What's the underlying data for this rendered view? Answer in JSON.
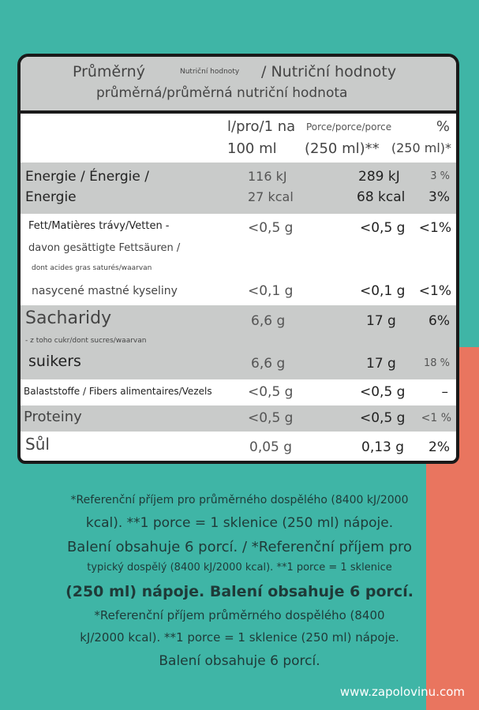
{
  "header": {
    "line1_left": "Průměrný",
    "line1_small": "Nutriční hodnoty",
    "line1_right": "/ Nutriční hodnoty",
    "line2": "průměrná/průměrná nutriční hodnota"
  },
  "columns": {
    "per100_a": "l/pro/1 na",
    "per100_b": "100 ml",
    "portion_a": "Porce/porce/porce",
    "portion_b": "(250 ml)**",
    "ri_a": "%",
    "ri_b": "(250 ml)*"
  },
  "rows": [
    {
      "label1": "Energie / Énergie /",
      "label2": "Energie",
      "per100": "116 kJ",
      "per100b": "27 kcal",
      "portion": "289 kJ",
      "portionb": "68 kcal",
      "ri": "3 %",
      "rib": "3%"
    },
    {
      "label1": "Fett/Matières trávy/Vetten -",
      "per100": "<0,5 g",
      "portion": "<0,5 g",
      "ri": "<1%"
    },
    {
      "label1": "davon gesättigte Fettsäuren /",
      "label2": "dont acides gras saturés/waarvan",
      "label3": "nasycené mastné kyseliny",
      "per100": "<0,1 g",
      "portion": "<0,1 g",
      "ri": "<1%"
    },
    {
      "label1": "Sacharidy",
      "per100": "6,6 g",
      "portion": "17 g",
      "ri": "6%"
    },
    {
      "label1": "- z toho cukr/dont sucres/waarvan",
      "label2": "suikers",
      "per100": "6,6 g",
      "portion": "17 g",
      "ri": "18 %"
    },
    {
      "label1": "Balaststoffe / Fibers alimentaires/Vezels",
      "per100": "<0,5 g",
      "portion": "<0,5 g",
      "ri": "–"
    },
    {
      "label1": "Proteiny",
      "per100": "<0,5 g",
      "portion": "<0,5 g",
      "ri": "<1 %"
    },
    {
      "label1": "Sůl",
      "per100": "0,05 g",
      "portion": "0,13 g",
      "ri": "2%"
    }
  ],
  "footer": [
    "*Referenční příjem pro průměrného dospělého (8400 kJ/2000",
    "kcal). **1 porce = 1 sklenice (250 ml) nápoje.",
    "Balení obsahuje 6 porcí. / *Referenční příjem pro",
    "typický dospělý (8400 kJ/2000 kcal). **1 porce = 1 sklenice",
    "(250 ml) nápoje. Balení obsahuje 6 porcí.",
    "*Referenční příjem průměrného dospělého (8400",
    "kJ/2000 kcal). **1 porce = 1 sklenice (250 ml) nápoje.",
    "Balení obsahuje 6 porcí."
  ],
  "watermark": "www.zapolovinu.com",
  "colors": {
    "background": "#3fb5a6",
    "row_gray": "#c9cbca",
    "accent_red": "#e9755f"
  }
}
